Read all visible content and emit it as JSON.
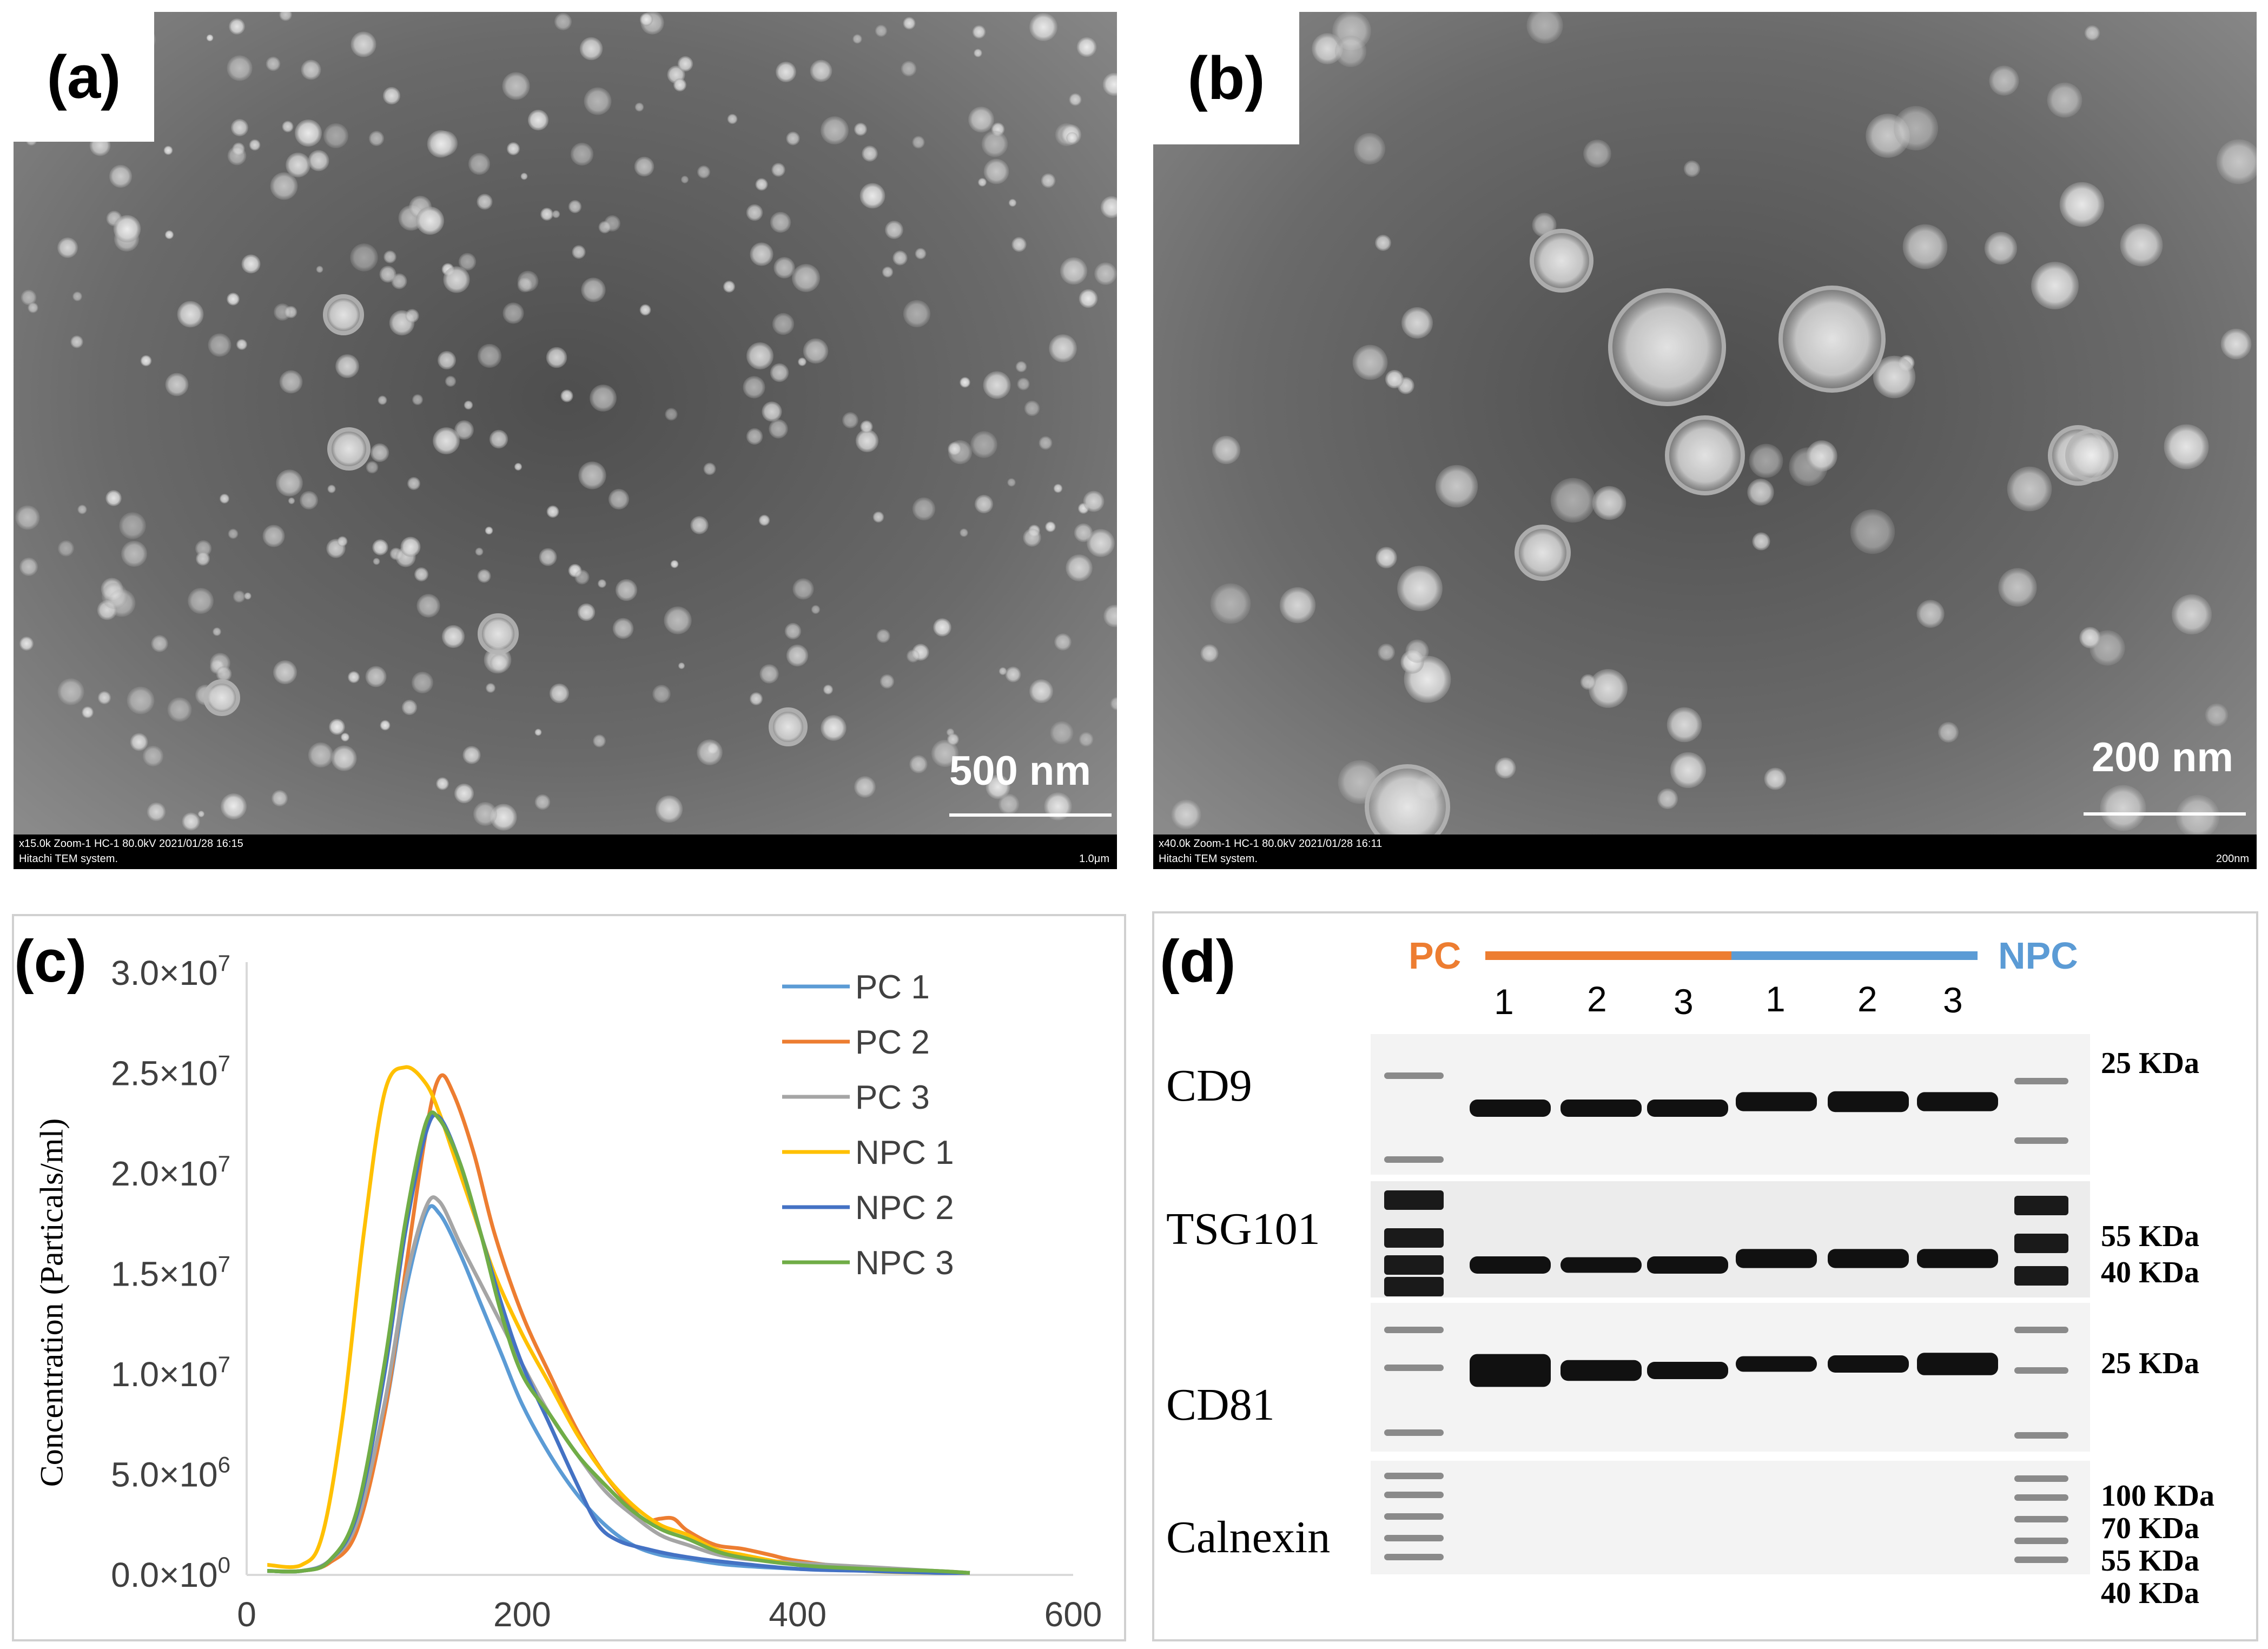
{
  "panel_a": {
    "letter": "(a)",
    "scale_label": "500 nm",
    "info_line1": "x15.0k Zoom-1 HC-1 80.0kV 2021/01/28 16:15",
    "info_line2": "Hitachi TEM system.",
    "info_scale": "1.0μm"
  },
  "panel_b": {
    "letter": "(b)",
    "scale_label": "200 nm",
    "info_line1": "x40.0k Zoom-1 HC-1 80.0kV 2021/01/28 16:11",
    "info_line2": "Hitachi TEM system.",
    "info_scale": "200nm"
  },
  "panel_c": {
    "letter": "(c)",
    "chart_data": {
      "type": "line",
      "title": "",
      "xlabel": "",
      "ylabel": "Concentration (Particals/ml)",
      "xlim": [
        0,
        600
      ],
      "ylim": [
        0,
        30000000
      ],
      "x_ticks": [
        "0",
        "200",
        "400",
        "600"
      ],
      "y_ticks": [
        {
          "base": "0.0×10",
          "exp": "0"
        },
        {
          "base": "5.0×10",
          "exp": "6"
        },
        {
          "base": "1.0×10",
          "exp": "7"
        },
        {
          "base": "1.5×10",
          "exp": "7"
        },
        {
          "base": "2.0×10",
          "exp": "7"
        },
        {
          "base": "2.5×10",
          "exp": "7"
        },
        {
          "base": "3.0×10",
          "exp": "7"
        }
      ],
      "grid": false,
      "legend_position": "top-right",
      "series": [
        {
          "name": "PC 1",
          "color": "#5b9bd5",
          "x": [
            15,
            40,
            60,
            80,
            100,
            115,
            130,
            140,
            155,
            170,
            185,
            200,
            220,
            240,
            260,
            280,
            300,
            320,
            350,
            400,
            450,
            500,
            525
          ],
          "y": [
            200000,
            200000,
            700000,
            2500000,
            8000000,
            14000000,
            18000000,
            18000000,
            16000000,
            13500000,
            11000000,
            8500000,
            6000000,
            4000000,
            2500000,
            1500000,
            1000000,
            800000,
            500000,
            300000,
            200000,
            100000,
            100000
          ]
        },
        {
          "name": "PC 2",
          "color": "#ed7d31",
          "x": [
            15,
            40,
            60,
            80,
            100,
            115,
            130,
            140,
            150,
            165,
            180,
            200,
            220,
            240,
            260,
            280,
            290,
            300,
            310,
            320,
            340,
            360,
            380,
            400,
            450,
            500,
            525
          ],
          "y": [
            200000,
            200000,
            600000,
            2200000,
            8000000,
            15000000,
            22000000,
            24800000,
            24000000,
            21000000,
            17000000,
            13000000,
            10000000,
            7200000,
            5000000,
            3300000,
            2700000,
            2800000,
            2800000,
            2200000,
            1500000,
            1300000,
            1000000,
            700000,
            300000,
            200000,
            100000
          ]
        },
        {
          "name": "PC 3",
          "color": "#a5a5a5",
          "x": [
            15,
            40,
            60,
            80,
            100,
            115,
            130,
            140,
            155,
            170,
            185,
            200,
            220,
            240,
            260,
            280,
            300,
            320,
            350,
            400,
            450,
            500,
            525
          ],
          "y": [
            200000,
            200000,
            700000,
            2600000,
            8500000,
            14500000,
            18300000,
            18600000,
            16500000,
            14500000,
            12500000,
            10500000,
            8000000,
            6000000,
            4200000,
            3000000,
            2000000,
            1500000,
            900000,
            600000,
            400000,
            200000,
            100000
          ]
        },
        {
          "name": "NPC 1",
          "color": "#ffc000",
          "x": [
            15,
            40,
            55,
            70,
            85,
            100,
            115,
            130,
            140,
            150,
            165,
            180,
            200,
            220,
            240,
            260,
            280,
            300,
            320,
            340,
            360,
            400,
            450,
            500,
            525
          ],
          "y": [
            500000,
            500000,
            2000000,
            8000000,
            17000000,
            24000000,
            25300000,
            24500000,
            23000000,
            21000000,
            18000000,
            15000000,
            12000000,
            9500000,
            7000000,
            5000000,
            3500000,
            2500000,
            2000000,
            1300000,
            1000000,
            500000,
            200000,
            100000,
            100000
          ]
        },
        {
          "name": "NPC 2",
          "color": "#4472c4",
          "x": [
            15,
            40,
            60,
            80,
            100,
            115,
            130,
            140,
            155,
            170,
            185,
            200,
            220,
            240,
            255,
            270,
            290,
            310,
            340,
            400,
            450,
            500,
            525
          ],
          "y": [
            200000,
            200000,
            700000,
            3000000,
            10000000,
            17000000,
            22000000,
            22800000,
            20500000,
            17000000,
            13500000,
            10500000,
            7500000,
            4500000,
            2500000,
            1700000,
            1300000,
            1000000,
            700000,
            300000,
            200000,
            100000,
            100000
          ]
        },
        {
          "name": "NPC 3",
          "color": "#70ad47",
          "x": [
            15,
            40,
            60,
            80,
            100,
            115,
            130,
            140,
            155,
            170,
            185,
            200,
            220,
            240,
            260,
            280,
            300,
            320,
            350,
            400,
            450,
            500,
            525
          ],
          "y": [
            200000,
            200000,
            700000,
            3200000,
            10500000,
            17500000,
            22500000,
            22700000,
            20500000,
            17000000,
            13000000,
            10000000,
            8000000,
            6000000,
            4500000,
            3200000,
            2300000,
            1800000,
            1000000,
            500000,
            300000,
            200000,
            100000
          ]
        }
      ]
    }
  },
  "panel_d": {
    "letter": "(d)",
    "group_pc": "PC",
    "group_npc": "NPC",
    "pc_color": "#ed7d31",
    "npc_color": "#5b9bd5",
    "lanes": [
      "1",
      "2",
      "3",
      "1",
      "2",
      "3"
    ],
    "blots": [
      {
        "name": "CD9",
        "markers": [
          "25 KDa"
        ]
      },
      {
        "name": "TSG101",
        "markers": [
          "55 KDa",
          "40 KDa"
        ]
      },
      {
        "name": "CD81",
        "markers": [
          "25 KDa"
        ]
      },
      {
        "name": "Calnexin",
        "markers": [
          "100 KDa",
          "70 KDa",
          "55 KDa",
          "40 KDa"
        ]
      }
    ]
  }
}
